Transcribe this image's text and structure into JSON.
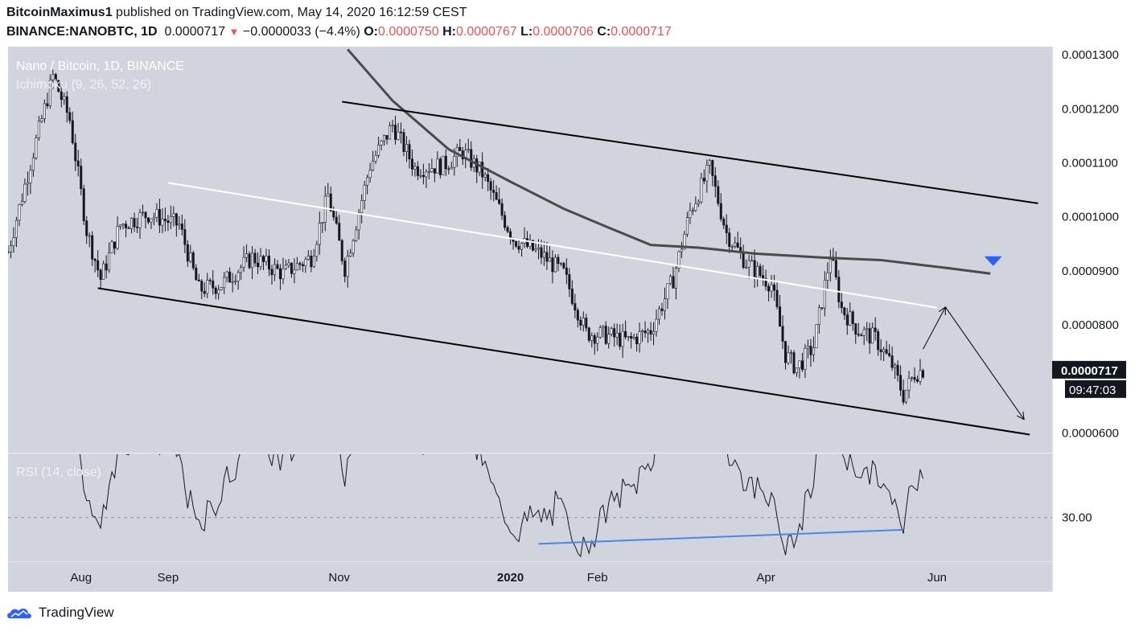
{
  "header": {
    "author": "BitcoinMaximus1",
    "published": "published on TradingView.com, May 14, 2020 16:12:59 CEST",
    "symbol": "BINANCE:NANOBTC, 1D",
    "last": "0.0000717",
    "change": "−0.0000033 (−4.4%)",
    "o_label": "O:",
    "o_value": "0.0000750",
    "h_label": "H:",
    "h_value": "0.0000767",
    "l_label": "L:",
    "l_value": "0.0000706",
    "c_label": "C:",
    "c_value": "0.0000717"
  },
  "overlay": {
    "title": "Nano / Bitcoin, 1D, BINANCE",
    "indicator": "Ichimoku (9, 26, 52, 26)",
    "rsi_label": "RSI (14, close)"
  },
  "footer": {
    "brand": "TradingView"
  },
  "colors": {
    "panel": "#d1d4dc",
    "candle": "#131722",
    "channel": "#000000",
    "midline": "#ffffff",
    "ma": "#4a4a4a",
    "rsi_div": "#4a86e8",
    "marker": "#2962ff",
    "down": "#ef5350"
  },
  "chart_data": {
    "type": "candlestick",
    "x_ticks": [
      "Aug",
      "Sep",
      "Nov",
      "2020",
      "Feb",
      "Apr",
      "Jun"
    ],
    "x_tick_dates": [
      "2019-08-01",
      "2019-09-01",
      "2019-11-01",
      "2020-01-01",
      "2020-02-01",
      "2020-04-01",
      "2020-06-01"
    ],
    "x_range": [
      "2019-07-06",
      "2020-07-12"
    ],
    "y_ticks": [
      0.00013,
      0.00012,
      0.00011,
      0.0001,
      9e-05,
      8e-05,
      6e-05
    ],
    "y_tick_labels": [
      "0.0001300",
      "0.0001200",
      "0.0001100",
      "0.0001000",
      "0.0000900",
      "0.0000800",
      "0.0000600"
    ],
    "ylim": [
      5.65e-05,
      0.0001315
    ],
    "price_badge": "0.0000717",
    "countdown_badge": "09:47:03",
    "price_series_key": [
      [
        "2019-07-06",
        9.35e-05
      ],
      [
        "2019-07-15",
        0.000112
      ],
      [
        "2019-07-22",
        0.000126
      ],
      [
        "2019-07-28",
        0.000118
      ],
      [
        "2019-08-03",
        9.75e-05
      ],
      [
        "2019-08-08",
        8.85e-05
      ],
      [
        "2019-08-15",
        9.85e-05
      ],
      [
        "2019-08-25",
        0.0001005
      ],
      [
        "2019-09-05",
        9.85e-05
      ],
      [
        "2019-09-12",
        8.65e-05
      ],
      [
        "2019-09-20",
        8.75e-05
      ],
      [
        "2019-10-01",
        9.25e-05
      ],
      [
        "2019-10-12",
        8.95e-05
      ],
      [
        "2019-10-22",
        9.25e-05
      ],
      [
        "2019-10-28",
        0.000104
      ],
      [
        "2019-11-03",
        9.05e-05
      ],
      [
        "2019-11-12",
        0.0001095
      ],
      [
        "2019-11-20",
        0.000117
      ],
      [
        "2019-11-28",
        0.000109
      ],
      [
        "2019-12-08",
        0.0001095
      ],
      [
        "2019-12-15",
        0.000112
      ],
      [
        "2019-12-22",
        0.000108
      ],
      [
        "2020-01-02",
        9.6e-05
      ],
      [
        "2020-01-12",
        9.3e-05
      ],
      [
        "2020-01-20",
        8.95e-05
      ],
      [
        "2020-01-28",
        7.85e-05
      ],
      [
        "2020-02-05",
        7.8e-05
      ],
      [
        "2020-02-12",
        7.7e-05
      ],
      [
        "2020-02-20",
        7.9e-05
      ],
      [
        "2020-02-28",
        8.85e-05
      ],
      [
        "2020-03-05",
        0.000101
      ],
      [
        "2020-03-12",
        0.000109
      ],
      [
        "2020-03-18",
        9.7e-05
      ],
      [
        "2020-03-25",
        9.15e-05
      ],
      [
        "2020-04-03",
        8.75e-05
      ],
      [
        "2020-04-08",
        7.45e-05
      ],
      [
        "2020-04-12",
        7.2e-05
      ],
      [
        "2020-04-18",
        7.6e-05
      ],
      [
        "2020-04-24",
        9.3e-05
      ],
      [
        "2020-04-28",
        8.3e-05
      ],
      [
        "2020-05-04",
        7.9e-05
      ],
      [
        "2020-05-10",
        7.75e-05
      ],
      [
        "2020-05-16",
        7.25e-05
      ],
      [
        "2020-05-20",
        6.7e-05
      ],
      [
        "2020-05-24",
        7.1e-05
      ],
      [
        "2020-05-27",
        7.17e-05
      ]
    ],
    "lines": [
      {
        "name": "channel-top",
        "points": [
          [
            "2019-11-02",
            0.0001213
          ],
          [
            "2020-07-07",
            0.0001025
          ]
        ]
      },
      {
        "name": "channel-bottom",
        "points": [
          [
            "2019-08-07",
            8.68e-05
          ],
          [
            "2020-07-04",
            5.97e-05
          ]
        ]
      },
      {
        "name": "mid-line",
        "points": [
          [
            "2019-09-01",
            0.0001063
          ],
          [
            "2020-06-01",
            8.32e-05
          ]
        ]
      },
      {
        "name": "projection-up",
        "points": [
          [
            "2020-05-27",
            7.55e-05
          ],
          [
            "2020-06-04",
            8.33e-05
          ]
        ]
      },
      {
        "name": "projection-down",
        "points": [
          [
            "2020-06-04",
            8.33e-05
          ],
          [
            "2020-07-02",
            6.25e-05
          ]
        ]
      }
    ],
    "moving_average": [
      [
        "2019-11-04",
        0.000131
      ],
      [
        "2019-11-20",
        0.0001215
      ],
      [
        "2019-12-10",
        0.0001125
      ],
      [
        "2020-01-01",
        0.0001065
      ],
      [
        "2020-01-20",
        0.0001015
      ],
      [
        "2020-02-05",
        9.8e-05
      ],
      [
        "2020-02-20",
        9.48e-05
      ],
      [
        "2020-03-08",
        9.43e-05
      ],
      [
        "2020-03-28",
        9.32e-05
      ],
      [
        "2020-04-20",
        9.25e-05
      ],
      [
        "2020-05-12",
        9.2e-05
      ],
      [
        "2020-06-05",
        9.05e-05
      ],
      [
        "2020-06-20",
        8.95e-05
      ]
    ],
    "marker": {
      "shape": "triangle-down",
      "date": "2020-06-21",
      "value": 9.18e-05
    },
    "rsi": {
      "label": "RSI (14, close)",
      "level_label": "30.00",
      "level": 30,
      "divergence": [
        [
          "2020-01-11",
          22.5
        ],
        [
          "2020-05-20",
          26.5
        ]
      ]
    }
  }
}
